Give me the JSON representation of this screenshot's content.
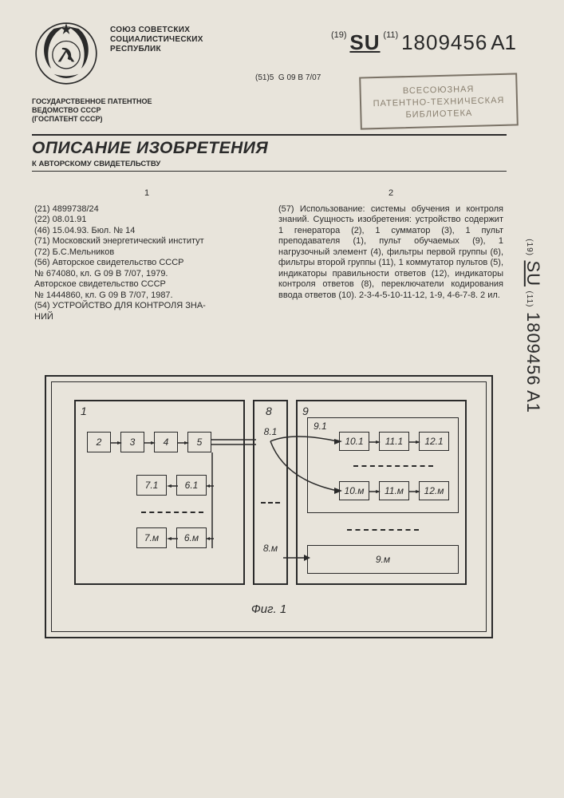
{
  "header": {
    "union": "СОЮЗ СОВЕТСКИХ\nСОЦИАЛИСТИЧЕСКИХ\nРЕСПУБЛИК",
    "agency": "ГОСУДАРСТВЕННОЕ ПАТЕНТНОЕ\nВЕДОМСТВО СССР\n(ГОСПАТЕНТ СССР)",
    "pub_country_pre": "(19)",
    "pub_country": "SU",
    "pub_num_pre": "(11)",
    "pub_number": "1809456",
    "pub_kind": "A1",
    "ipc_pre": "(51)5",
    "ipc": "G 09 B 7/07",
    "stamp_l1": "ВСЕСОЮЗНАЯ",
    "stamp_l2": "ПАТЕНТНО-ТЕХНИЧЕСКАЯ",
    "stamp_l3": "БИБЛИОТЕКА",
    "title": "ОПИСАНИЕ ИЗОБРЕТЕНИЯ",
    "subtitle": "К АВТОРСКОМУ СВИДЕТЕЛЬСТВУ"
  },
  "col1": {
    "num": "1",
    "lines": [
      "(21) 4899738/24",
      "(22) 08.01.91",
      "(46) 15.04.93. Бюл. № 14",
      "(71) Московский энергетический институт",
      "(72) Б.С.Мельников",
      "(56) Авторское свидетельство СССР",
      "№ 674080, кл. G 09 B 7/07, 1979.",
      "   Авторское свидетельство СССР",
      "№ 1444860, кл. G 09 B 7/07, 1987.",
      "(54) УСТРОЙСТВО ДЛЯ КОНТРОЛЯ ЗНА-",
      "НИЙ"
    ]
  },
  "col2": {
    "num": "2",
    "text": "(57) Использование: системы обучения и контроля знаний. Сущность изобретения: устройство содержит 1 генератора (2), 1 сумматор (3), 1 пульт преподавателя (1), пульт обучаемых (9), 1 нагрузочный элемент (4), фильтры первой группы (6), фильтры второй группы (11), 1 коммутатор пультов (5), индикаторы правильности ответов (12), индикаторы контроля ответов (8), переключатели кодирования ввода ответов (10). 2-3-4-5-10-11-12, 1-9, 4-6-7-8. 2 ил."
  },
  "figure": {
    "caption": "Фиг. 1",
    "labels": {
      "b1": "1",
      "b8": "8",
      "b9": "9",
      "n2": "2",
      "n3": "3",
      "n4": "4",
      "n5": "5",
      "n71": "7.1",
      "n61": "6.1",
      "n7m": "7.м",
      "n6m": "6.м",
      "n81": "8.1",
      "n8m": "8.м",
      "n91": "9.1",
      "n9m": "9.м",
      "n101": "10.1",
      "n111": "11.1",
      "n121": "12.1",
      "n10m": "10.м",
      "n11m": "11.м",
      "n12m": "12.м"
    }
  },
  "side": {
    "pre19": "(19)",
    "su": "SU",
    "pre11": "(11)",
    "num": "1809456",
    "kind": "A1"
  },
  "colors": {
    "bg": "#e8e4db",
    "ink": "#2a2a2a",
    "stamp": "#8a8070"
  }
}
